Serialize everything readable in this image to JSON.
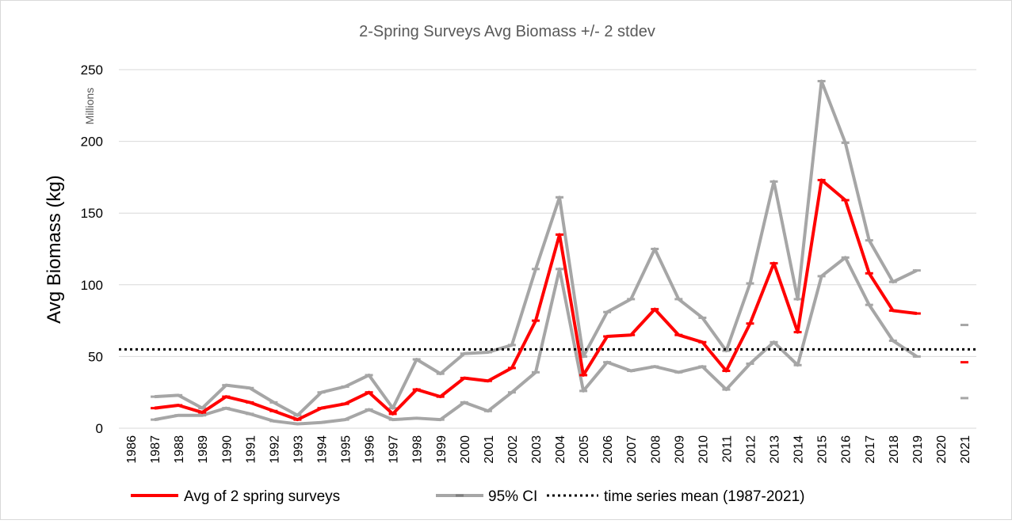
{
  "chart_data": {
    "type": "line",
    "title": "2-Spring Surveys Avg Biomass +/- 2 stdev",
    "y_label": "Avg Biomass (kg)",
    "y_unit_label": "Millions",
    "categories": [
      "1986",
      "1987",
      "1988",
      "1989",
      "1990",
      "1991",
      "1992",
      "1993",
      "1994",
      "1995",
      "1996",
      "1997",
      "1998",
      "1999",
      "2000",
      "2001",
      "2002",
      "2003",
      "2004",
      "2005",
      "2006",
      "2007",
      "2008",
      "2009",
      "2010",
      "2011",
      "2012",
      "2013",
      "2014",
      "2015",
      "2016",
      "2017",
      "2018",
      "2019",
      "2020",
      "2021"
    ],
    "series": [
      {
        "name": "Avg of 2 spring surveys",
        "color": "#ff0000",
        "values": [
          null,
          14,
          16,
          11,
          22,
          18,
          12,
          6,
          14,
          17,
          25,
          10,
          27,
          22,
          35,
          33,
          42,
          75,
          135,
          37,
          64,
          65,
          83,
          65,
          60,
          40,
          73,
          115,
          67,
          173,
          159,
          108,
          82,
          80,
          null,
          46
        ]
      }
    ],
    "ci": {
      "name": "95% CI",
      "color": "#a6a6a6",
      "upper": [
        null,
        22,
        23,
        14,
        30,
        28,
        18,
        9,
        25,
        29,
        37,
        14,
        48,
        38,
        52,
        53,
        58,
        111,
        161,
        50,
        81,
        90,
        125,
        90,
        77,
        54,
        101,
        172,
        90,
        242,
        199,
        131,
        102,
        110,
        null,
        72
      ],
      "lower": [
        null,
        6,
        9,
        9,
        14,
        10,
        5,
        3,
        4,
        6,
        13,
        6,
        7,
        6,
        18,
        12,
        25,
        39,
        111,
        26,
        46,
        40,
        43,
        39,
        43,
        27,
        45,
        60,
        44,
        106,
        119,
        86,
        61,
        50,
        null,
        21
      ]
    },
    "mean": {
      "name": "time series mean (1987-2021)",
      "color": "#000000",
      "value": 55
    },
    "ylim": [
      0,
      250
    ],
    "yticks": [
      0,
      50,
      100,
      150,
      200,
      250
    ],
    "grid": true
  }
}
